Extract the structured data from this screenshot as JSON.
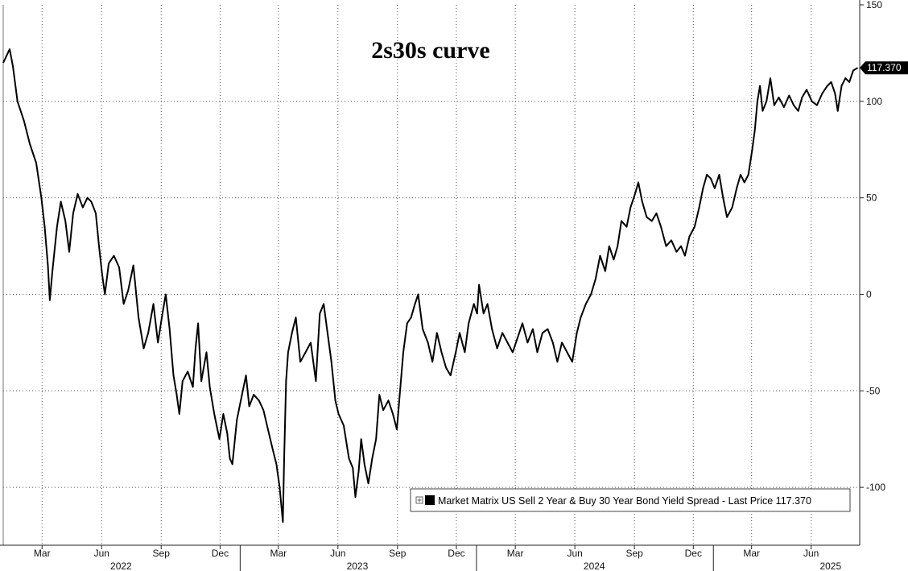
{
  "chart_data": {
    "type": "line",
    "title": "2s30s curve",
    "xlabel": "",
    "ylabel": "",
    "x_range": [
      "2021-12-31",
      "2025-08-15"
    ],
    "ylim": [
      -130,
      150
    ],
    "y_ticks": [
      150,
      100,
      50,
      0,
      -50,
      -100
    ],
    "grid": true,
    "grid_style": "dotted",
    "y_axis_side": "right",
    "legend_position": "bottom-right",
    "last_price_label": "117.370",
    "month_ticks": [
      {
        "date": "2022-03-01",
        "label": "Mar"
      },
      {
        "date": "2022-06-01",
        "label": "Jun"
      },
      {
        "date": "2022-09-01",
        "label": "Sep"
      },
      {
        "date": "2022-12-01",
        "label": "Dec"
      },
      {
        "date": "2023-03-01",
        "label": "Mar"
      },
      {
        "date": "2023-06-01",
        "label": "Jun"
      },
      {
        "date": "2023-09-01",
        "label": "Sep"
      },
      {
        "date": "2023-12-01",
        "label": "Dec"
      },
      {
        "date": "2024-03-01",
        "label": "Mar"
      },
      {
        "date": "2024-06-01",
        "label": "Jun"
      },
      {
        "date": "2024-09-01",
        "label": "Sep"
      },
      {
        "date": "2024-12-01",
        "label": "Dec"
      },
      {
        "date": "2025-03-01",
        "label": "Mar"
      },
      {
        "date": "2025-06-01",
        "label": "Jun"
      }
    ],
    "year_labels": [
      {
        "date": "2022-07-01",
        "label": "2022"
      },
      {
        "date": "2023-07-01",
        "label": "2023"
      },
      {
        "date": "2024-07-01",
        "label": "2024"
      },
      {
        "date": "2025-07-01",
        "label": "2025"
      }
    ],
    "year_boundaries": [
      "2023-01-01",
      "2024-01-01",
      "2025-01-01"
    ],
    "series": [
      {
        "name": "Market Matrix US Sell 2 Year & Buy 30 Year Bond Yield Spread - Last Price 117.370",
        "color": "#000000",
        "points": [
          [
            "2021-12-31",
            120
          ],
          [
            "2022-01-10",
            127
          ],
          [
            "2022-01-15",
            118
          ],
          [
            "2022-01-22",
            100
          ],
          [
            "2022-02-01",
            90
          ],
          [
            "2022-02-10",
            78
          ],
          [
            "2022-02-20",
            68
          ],
          [
            "2022-02-28",
            50
          ],
          [
            "2022-03-05",
            35
          ],
          [
            "2022-03-10",
            15
          ],
          [
            "2022-03-13",
            -3
          ],
          [
            "2022-03-17",
            12
          ],
          [
            "2022-03-24",
            35
          ],
          [
            "2022-03-30",
            48
          ],
          [
            "2022-04-06",
            38
          ],
          [
            "2022-04-12",
            22
          ],
          [
            "2022-04-18",
            42
          ],
          [
            "2022-04-25",
            52
          ],
          [
            "2022-05-03",
            45
          ],
          [
            "2022-05-10",
            50
          ],
          [
            "2022-05-16",
            48
          ],
          [
            "2022-05-23",
            42
          ],
          [
            "2022-05-28",
            25
          ],
          [
            "2022-06-02",
            10
          ],
          [
            "2022-06-06",
            0
          ],
          [
            "2022-06-12",
            16
          ],
          [
            "2022-06-20",
            20
          ],
          [
            "2022-06-28",
            14
          ],
          [
            "2022-07-05",
            -5
          ],
          [
            "2022-07-12",
            2
          ],
          [
            "2022-07-20",
            15
          ],
          [
            "2022-07-28",
            -12
          ],
          [
            "2022-08-05",
            -28
          ],
          [
            "2022-08-12",
            -20
          ],
          [
            "2022-08-20",
            -5
          ],
          [
            "2022-08-27",
            -25
          ],
          [
            "2022-09-03",
            -10
          ],
          [
            "2022-09-08",
            0
          ],
          [
            "2022-09-14",
            -18
          ],
          [
            "2022-09-20",
            -42
          ],
          [
            "2022-09-25",
            -52
          ],
          [
            "2022-09-29",
            -62
          ],
          [
            "2022-10-04",
            -45
          ],
          [
            "2022-10-12",
            -40
          ],
          [
            "2022-10-20",
            -48
          ],
          [
            "2022-10-24",
            -28
          ],
          [
            "2022-10-28",
            -15
          ],
          [
            "2022-11-02",
            -45
          ],
          [
            "2022-11-10",
            -30
          ],
          [
            "2022-11-15",
            -48
          ],
          [
            "2022-11-22",
            -62
          ],
          [
            "2022-11-30",
            -75
          ],
          [
            "2022-12-06",
            -62
          ],
          [
            "2022-12-12",
            -72
          ],
          [
            "2022-12-16",
            -85
          ],
          [
            "2022-12-20",
            -88
          ],
          [
            "2022-12-27",
            -65
          ],
          [
            "2023-01-05",
            -50
          ],
          [
            "2023-01-10",
            -42
          ],
          [
            "2023-01-15",
            -58
          ],
          [
            "2023-01-22",
            -52
          ],
          [
            "2023-01-30",
            -55
          ],
          [
            "2023-02-06",
            -60
          ],
          [
            "2023-02-13",
            -70
          ],
          [
            "2023-02-20",
            -80
          ],
          [
            "2023-02-26",
            -88
          ],
          [
            "2023-03-03",
            -100
          ],
          [
            "2023-03-08",
            -118
          ],
          [
            "2023-03-10",
            -85
          ],
          [
            "2023-03-13",
            -45
          ],
          [
            "2023-03-16",
            -30
          ],
          [
            "2023-03-22",
            -20
          ],
          [
            "2023-03-28",
            -12
          ],
          [
            "2023-04-04",
            -35
          ],
          [
            "2023-04-12",
            -30
          ],
          [
            "2023-04-20",
            -25
          ],
          [
            "2023-04-28",
            -45
          ],
          [
            "2023-05-04",
            -10
          ],
          [
            "2023-05-10",
            -5
          ],
          [
            "2023-05-16",
            -20
          ],
          [
            "2023-05-22",
            -35
          ],
          [
            "2023-05-28",
            -55
          ],
          [
            "2023-06-02",
            -62
          ],
          [
            "2023-06-10",
            -68
          ],
          [
            "2023-06-18",
            -85
          ],
          [
            "2023-06-24",
            -90
          ],
          [
            "2023-06-28",
            -105
          ],
          [
            "2023-07-03",
            -92
          ],
          [
            "2023-07-07",
            -75
          ],
          [
            "2023-07-12",
            -88
          ],
          [
            "2023-07-18",
            -98
          ],
          [
            "2023-07-24",
            -85
          ],
          [
            "2023-07-30",
            -75
          ],
          [
            "2023-08-04",
            -52
          ],
          [
            "2023-08-10",
            -60
          ],
          [
            "2023-08-18",
            -55
          ],
          [
            "2023-08-25",
            -62
          ],
          [
            "2023-08-31",
            -70
          ],
          [
            "2023-09-05",
            -50
          ],
          [
            "2023-09-10",
            -30
          ],
          [
            "2023-09-16",
            -15
          ],
          [
            "2023-09-22",
            -12
          ],
          [
            "2023-09-28",
            -5
          ],
          [
            "2023-10-03",
            0
          ],
          [
            "2023-10-10",
            -18
          ],
          [
            "2023-10-18",
            -25
          ],
          [
            "2023-10-25",
            -35
          ],
          [
            "2023-11-01",
            -20
          ],
          [
            "2023-11-08",
            -30
          ],
          [
            "2023-11-15",
            -38
          ],
          [
            "2023-11-22",
            -42
          ],
          [
            "2023-11-30",
            -30
          ],
          [
            "2023-12-06",
            -20
          ],
          [
            "2023-12-14",
            -30
          ],
          [
            "2023-12-20",
            -15
          ],
          [
            "2023-12-28",
            -5
          ],
          [
            "2024-01-02",
            -10
          ],
          [
            "2024-01-05",
            5
          ],
          [
            "2024-01-12",
            -10
          ],
          [
            "2024-01-18",
            -5
          ],
          [
            "2024-01-25",
            -18
          ],
          [
            "2024-02-02",
            -28
          ],
          [
            "2024-02-10",
            -20
          ],
          [
            "2024-02-18",
            -25
          ],
          [
            "2024-02-26",
            -30
          ],
          [
            "2024-03-05",
            -22
          ],
          [
            "2024-03-12",
            -15
          ],
          [
            "2024-03-20",
            -25
          ],
          [
            "2024-03-28",
            -18
          ],
          [
            "2024-04-04",
            -30
          ],
          [
            "2024-04-12",
            -20
          ],
          [
            "2024-04-20",
            -18
          ],
          [
            "2024-04-28",
            -25
          ],
          [
            "2024-05-05",
            -35
          ],
          [
            "2024-05-12",
            -25
          ],
          [
            "2024-05-20",
            -30
          ],
          [
            "2024-05-28",
            -35
          ],
          [
            "2024-06-04",
            -20
          ],
          [
            "2024-06-10",
            -12
          ],
          [
            "2024-06-18",
            -5
          ],
          [
            "2024-06-26",
            0
          ],
          [
            "2024-07-03",
            8
          ],
          [
            "2024-07-10",
            20
          ],
          [
            "2024-07-18",
            12
          ],
          [
            "2024-07-24",
            25
          ],
          [
            "2024-07-31",
            18
          ],
          [
            "2024-08-06",
            25
          ],
          [
            "2024-08-12",
            38
          ],
          [
            "2024-08-20",
            35
          ],
          [
            "2024-08-26",
            45
          ],
          [
            "2024-09-02",
            52
          ],
          [
            "2024-09-07",
            58
          ],
          [
            "2024-09-13",
            48
          ],
          [
            "2024-09-20",
            40
          ],
          [
            "2024-09-28",
            38
          ],
          [
            "2024-10-05",
            42
          ],
          [
            "2024-10-12",
            35
          ],
          [
            "2024-10-20",
            25
          ],
          [
            "2024-10-28",
            28
          ],
          [
            "2024-11-05",
            22
          ],
          [
            "2024-11-12",
            25
          ],
          [
            "2024-11-18",
            20
          ],
          [
            "2024-11-25",
            30
          ],
          [
            "2024-12-03",
            35
          ],
          [
            "2024-12-10",
            45
          ],
          [
            "2024-12-16",
            55
          ],
          [
            "2024-12-22",
            62
          ],
          [
            "2024-12-28",
            60
          ],
          [
            "2025-01-03",
            55
          ],
          [
            "2025-01-10",
            62
          ],
          [
            "2025-01-16",
            50
          ],
          [
            "2025-01-22",
            40
          ],
          [
            "2025-01-30",
            45
          ],
          [
            "2025-02-06",
            55
          ],
          [
            "2025-02-12",
            62
          ],
          [
            "2025-02-18",
            58
          ],
          [
            "2025-02-24",
            62
          ],
          [
            "2025-03-02",
            75
          ],
          [
            "2025-03-06",
            85
          ],
          [
            "2025-03-10",
            100
          ],
          [
            "2025-03-14",
            108
          ],
          [
            "2025-03-18",
            95
          ],
          [
            "2025-03-24",
            100
          ],
          [
            "2025-03-30",
            112
          ],
          [
            "2025-04-05",
            98
          ],
          [
            "2025-04-12",
            102
          ],
          [
            "2025-04-20",
            97
          ],
          [
            "2025-04-28",
            103
          ],
          [
            "2025-05-05",
            98
          ],
          [
            "2025-05-12",
            95
          ],
          [
            "2025-05-18",
            102
          ],
          [
            "2025-05-25",
            106
          ],
          [
            "2025-06-02",
            100
          ],
          [
            "2025-06-10",
            98
          ],
          [
            "2025-06-18",
            104
          ],
          [
            "2025-06-26",
            108
          ],
          [
            "2025-07-02",
            110
          ],
          [
            "2025-07-08",
            104
          ],
          [
            "2025-07-12",
            95
          ],
          [
            "2025-07-18",
            108
          ],
          [
            "2025-07-24",
            112
          ],
          [
            "2025-07-30",
            110
          ],
          [
            "2025-08-05",
            116
          ],
          [
            "2025-08-12",
            117.37
          ]
        ]
      }
    ]
  }
}
